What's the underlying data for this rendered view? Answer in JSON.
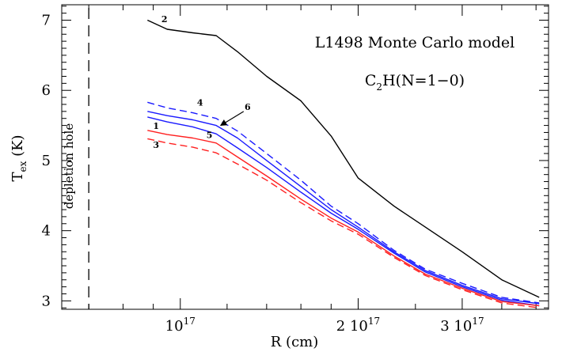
{
  "chart_data": {
    "type": "line",
    "title": "L1498 Monte Carlo model",
    "subtitle_base": "C",
    "subtitle_sub": "2",
    "subtitle_rest": "H(N=1−0)",
    "xlabel": "R (cm)",
    "ylabel_base": "T",
    "ylabel_sub": "ex",
    "ylabel_unit": " (K)",
    "xscale": "log",
    "xlim": [
      6.3e+16,
      4.2e+17
    ],
    "ylim": [
      2.88,
      7.22
    ],
    "x_tick_labels": [
      {
        "value": 1e+17,
        "mantissa": "10",
        "exp": "17"
      },
      {
        "value": 2e+17,
        "mantissa": "2 10",
        "exp": "17"
      },
      {
        "value": 3e+17,
        "mantissa": "3 10",
        "exp": "17"
      }
    ],
    "y_ticks": [
      3,
      4,
      5,
      6,
      7
    ],
    "depletion_hole": {
      "x": 7e+16,
      "label": "depletion hole"
    },
    "series": [
      {
        "name": "2",
        "color": "#000000",
        "dash": false,
        "label_at": [
          9.4e+16,
          6.97
        ],
        "x": [
          8.8e+16,
          9.5e+16,
          1.05e+17,
          1.15e+17,
          1.25e+17,
          1.4e+17,
          1.6e+17,
          1.8e+17,
          2e+17,
          2.3e+17,
          2.6e+17,
          3e+17,
          3.5e+17,
          4.05e+17
        ],
        "y": [
          7.0,
          6.87,
          6.82,
          6.78,
          6.55,
          6.2,
          5.85,
          5.35,
          4.75,
          4.35,
          4.05,
          3.7,
          3.3,
          3.05
        ]
      },
      {
        "name": "4",
        "color": "#1a1aff",
        "dash": true,
        "label_at": [
          1.08e+17,
          5.78
        ],
        "x": [
          8.8e+16,
          9.5e+16,
          1.05e+17,
          1.15e+17,
          1.25e+17,
          1.4e+17,
          1.6e+17,
          1.8e+17,
          2e+17,
          2.3e+17,
          2.6e+17,
          3e+17,
          3.5e+17,
          4.05e+17
        ],
        "y": [
          5.83,
          5.75,
          5.68,
          5.6,
          5.42,
          5.1,
          4.72,
          4.35,
          4.1,
          3.72,
          3.45,
          3.25,
          3.05,
          2.97
        ]
      },
      {
        "name": "6",
        "color": "#1a1aff",
        "dash": false,
        "label_at": [
          1.3e+17,
          5.72
        ],
        "x": [
          8.8e+16,
          9.5e+16,
          1.05e+17,
          1.15e+17,
          1.25e+17,
          1.4e+17,
          1.6e+17,
          1.8e+17,
          2e+17,
          2.3e+17,
          2.6e+17,
          3e+17,
          3.5e+17,
          4.05e+17
        ],
        "y": [
          5.7,
          5.64,
          5.58,
          5.5,
          5.32,
          5.0,
          4.63,
          4.3,
          4.05,
          3.7,
          3.43,
          3.22,
          3.03,
          2.96
        ]
      },
      {
        "name": "5",
        "color": "#1a1aff",
        "dash": false,
        "label_at": [
          1.12e+17,
          5.32
        ],
        "x": [
          8.8e+16,
          9.5e+16,
          1.05e+17,
          1.15e+17,
          1.25e+17,
          1.4e+17,
          1.6e+17,
          1.8e+17,
          2e+17,
          2.3e+17,
          2.6e+17,
          3e+17,
          3.5e+17,
          4.05e+17
        ],
        "y": [
          5.62,
          5.55,
          5.48,
          5.38,
          5.18,
          4.9,
          4.55,
          4.25,
          4.02,
          3.68,
          3.41,
          3.2,
          3.01,
          2.93
        ]
      },
      {
        "name": "1",
        "color": "#ff2020",
        "dash": false,
        "label_at": [
          9.1e+16,
          5.45
        ],
        "x": [
          8.8e+16,
          9.5e+16,
          1.05e+17,
          1.15e+17,
          1.25e+17,
          1.4e+17,
          1.6e+17,
          1.8e+17,
          2e+17,
          2.3e+17,
          2.6e+17,
          3e+17,
          3.5e+17,
          4.05e+17
        ],
        "y": [
          5.43,
          5.37,
          5.32,
          5.25,
          5.05,
          4.78,
          4.45,
          4.18,
          3.98,
          3.64,
          3.38,
          3.18,
          2.99,
          2.93
        ]
      },
      {
        "name": "3",
        "color": "#ff2020",
        "dash": true,
        "label_at": [
          9.1e+16,
          5.18
        ],
        "x": [
          8.8e+16,
          9.5e+16,
          1.05e+17,
          1.15e+17,
          1.25e+17,
          1.4e+17,
          1.6e+17,
          1.8e+17,
          2e+17,
          2.3e+17,
          2.6e+17,
          3e+17,
          3.5e+17,
          4.05e+17
        ],
        "y": [
          5.31,
          5.25,
          5.19,
          5.11,
          4.95,
          4.72,
          4.4,
          4.14,
          3.95,
          3.62,
          3.36,
          3.16,
          2.97,
          2.9
        ]
      }
    ],
    "annotation": {
      "label": "6",
      "arrow_from": [
        1.28e+17,
        5.7
      ],
      "arrow_to": [
        1.17e+17,
        5.5
      ]
    },
    "grid": false,
    "legend": "inline labels"
  }
}
